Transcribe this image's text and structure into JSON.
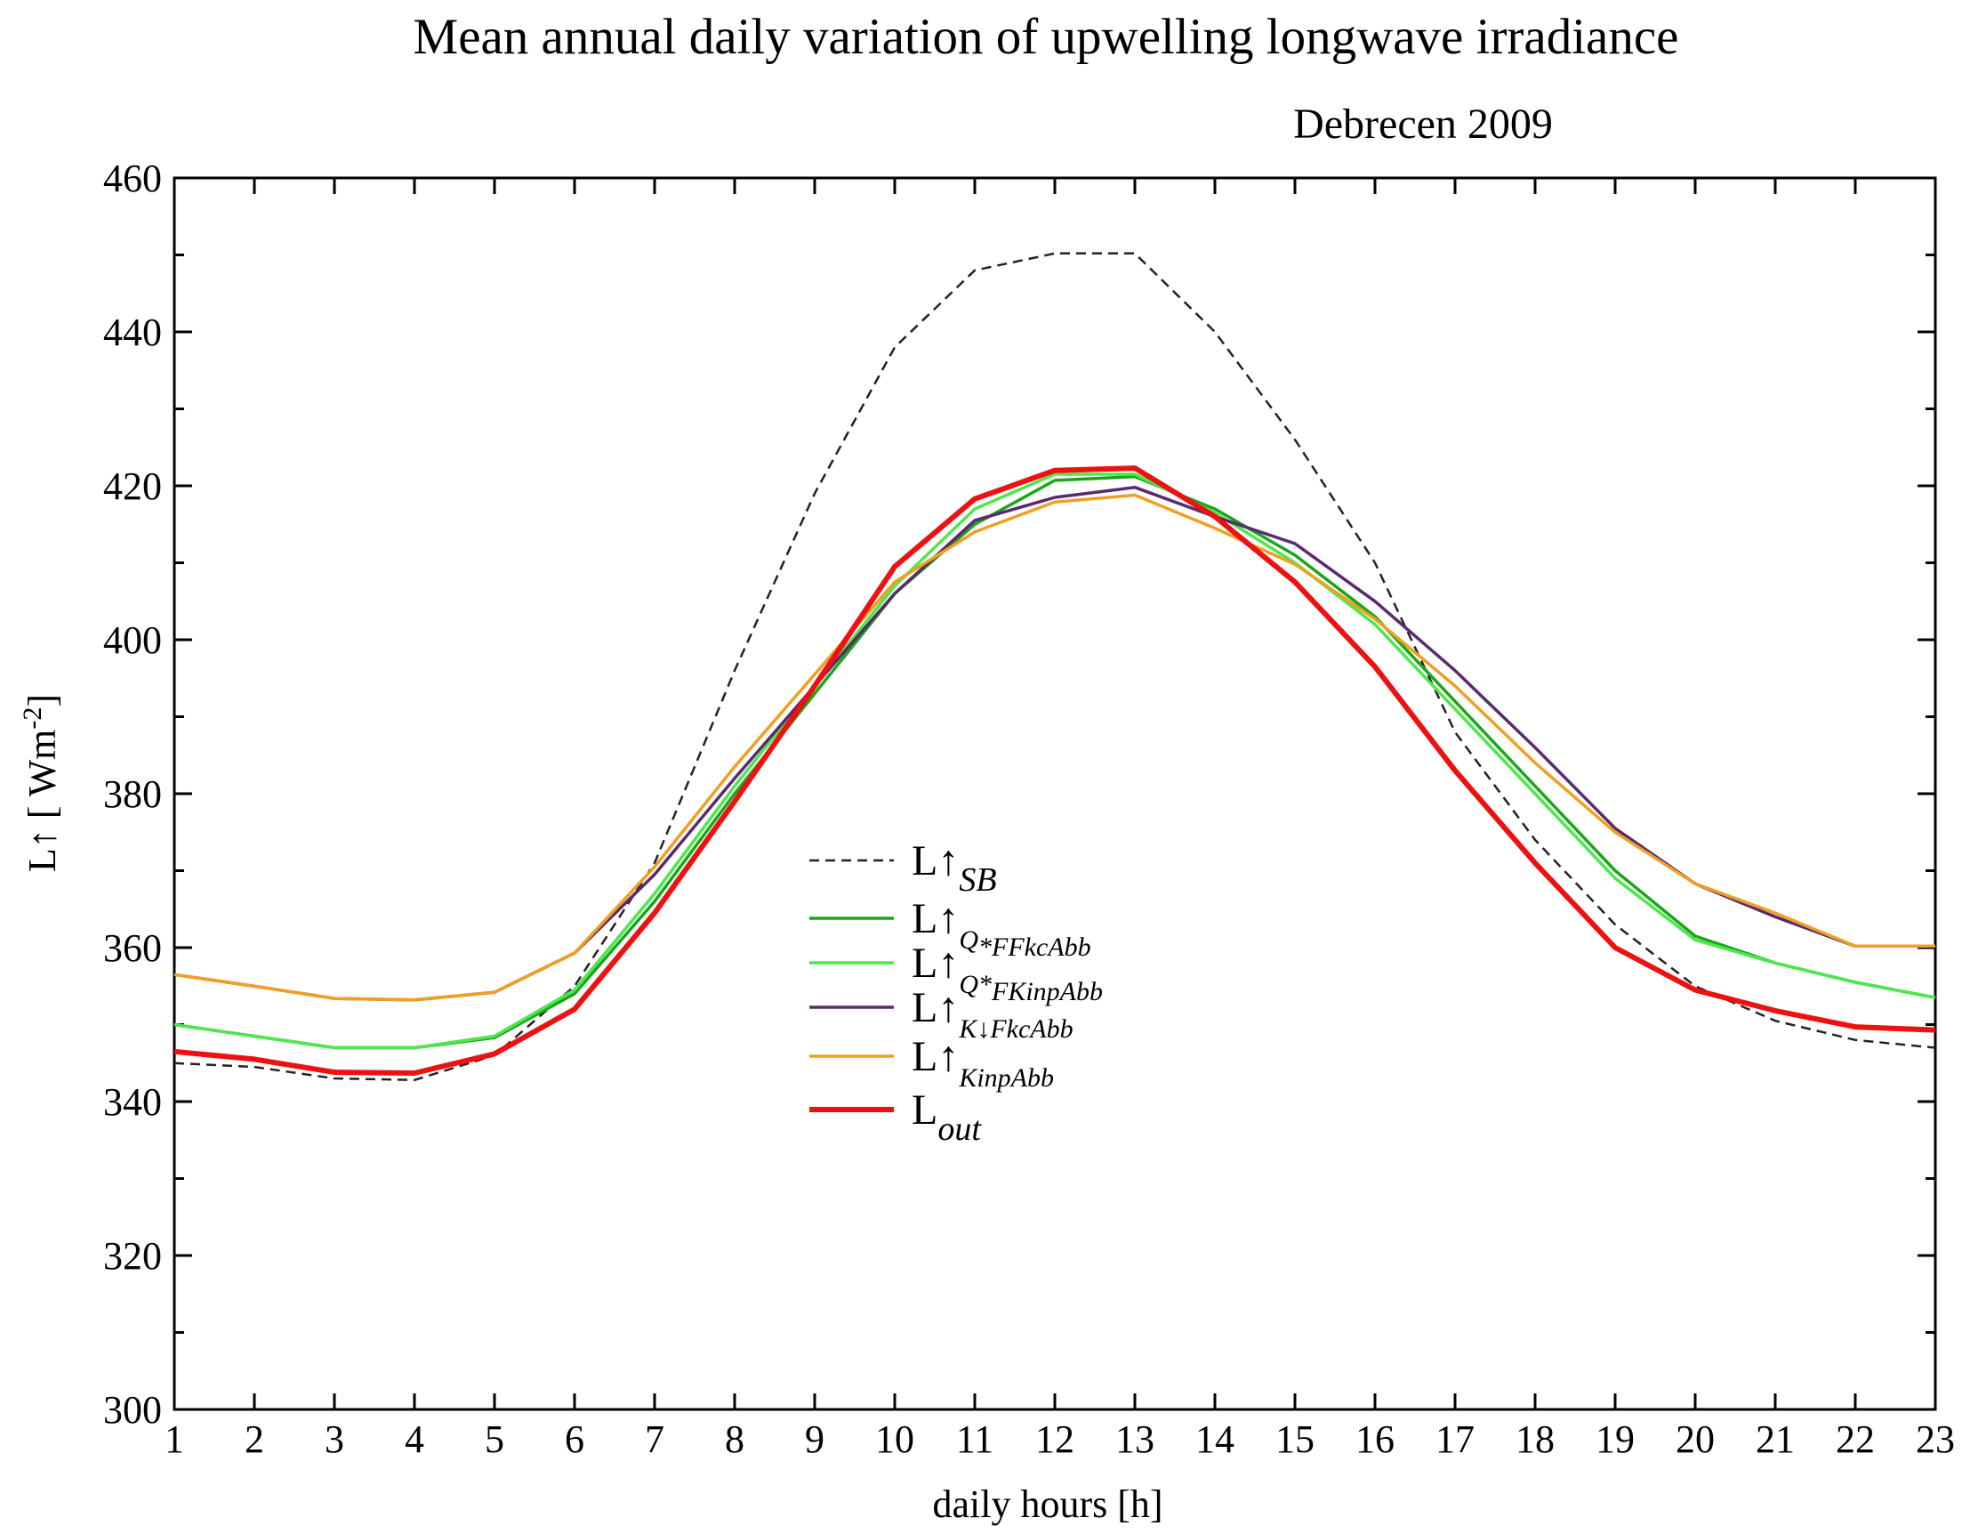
{
  "chart_data": {
    "type": "line",
    "title": "Mean annual daily variation of upwelling longwave irradiance",
    "subtitle": "Debrecen 2009",
    "xlabel": "daily hours [h]",
    "ylabel": "L↑ [ Wm-2]",
    "ylabel_main": "L↑ [ Wm",
    "ylabel_sup": "-2",
    "ylabel_end": "]",
    "xlim": [
      1,
      23
    ],
    "ylim": [
      300,
      460
    ],
    "x": [
      1,
      2,
      3,
      4,
      5,
      6,
      7,
      8,
      9,
      10,
      11,
      12,
      13,
      14,
      15,
      16,
      17,
      18,
      19,
      20,
      21,
      22,
      23
    ],
    "xticks": [
      "1",
      "2",
      "3",
      "4",
      "5",
      "6",
      "7",
      "8",
      "9",
      "10",
      "11",
      "12",
      "13",
      "14",
      "15",
      "16",
      "17",
      "18",
      "19",
      "20",
      "21",
      "22",
      "23"
    ],
    "yticks": [
      "300",
      "320",
      "340",
      "360",
      "380",
      "400",
      "420",
      "440",
      "460"
    ],
    "grid": false,
    "legend_position": "center-left",
    "series": [
      {
        "name": "L↑SB",
        "main": "L↑",
        "sub": "SB",
        "sub2": "",
        "color": "#222222",
        "dashed": true,
        "values": [
          345,
          344.5,
          343,
          342.8,
          346,
          355,
          371,
          396,
          419,
          438,
          448,
          450.2,
          450.2,
          440,
          426,
          410,
          388,
          374,
          363,
          355,
          350.5,
          348,
          347
        ]
      },
      {
        "name": "L↑Q*FFkcAbb",
        "main": "L↑",
        "sub": "Q",
        "sub2": "*FFkcAbb",
        "color": "#1aa61a",
        "dashed": false,
        "values": [
          350,
          348.5,
          347,
          347,
          348.3,
          354,
          366,
          380,
          393,
          406,
          415,
          420.7,
          421.2,
          417,
          411,
          403,
          392,
          381,
          370,
          361.5,
          358,
          355.5,
          353.5
        ]
      },
      {
        "name": "L↑Q*FKinpAbb",
        "main": "L↑",
        "sub": "Q*",
        "sub2": "FKinpAbb",
        "color": "#4ce84c",
        "dashed": false,
        "values": [
          350,
          348.5,
          347,
          347,
          348.5,
          354.5,
          367,
          381,
          394,
          407,
          417,
          421.5,
          421.5,
          416.5,
          410,
          402,
          391,
          380,
          369,
          361,
          358,
          355.5,
          353.5
        ]
      },
      {
        "name": "L↑K↓FkcAbb",
        "main": "L↑",
        "sub": "K↓FkcAbb",
        "sub2": "",
        "color": "#5a2a6e",
        "dashed": false,
        "values": [
          356.5,
          355,
          353.4,
          353.2,
          354.2,
          359.3,
          369.5,
          382,
          394,
          406,
          415.5,
          418.5,
          419.8,
          416,
          412.5,
          405,
          396,
          386,
          375.5,
          368.3,
          364,
          360.2,
          360.2
        ]
      },
      {
        "name": "L↑KinpAbb",
        "main": "L↑",
        "sub": "KinpAbb",
        "sub2": "",
        "color": "#f0a020",
        "dashed": false,
        "values": [
          356.5,
          355,
          353.4,
          353.2,
          354.2,
          359.3,
          370.5,
          383.5,
          395.5,
          407.5,
          414,
          417.9,
          418.8,
          414.5,
          409.8,
          402.7,
          394,
          384,
          375,
          368.3,
          364.5,
          360.2,
          360.2
        ]
      },
      {
        "name": "Lout",
        "main": "L",
        "sub": "out",
        "sub2": "",
        "color": "#ee1111",
        "dashed": false,
        "values": [
          346.5,
          345.5,
          343.8,
          343.7,
          346.2,
          352,
          364.5,
          379,
          394,
          409.5,
          418.3,
          422,
          422.3,
          416,
          407.5,
          396.5,
          383,
          371,
          360,
          354.5,
          351.8,
          349.7,
          349.3
        ]
      }
    ]
  }
}
